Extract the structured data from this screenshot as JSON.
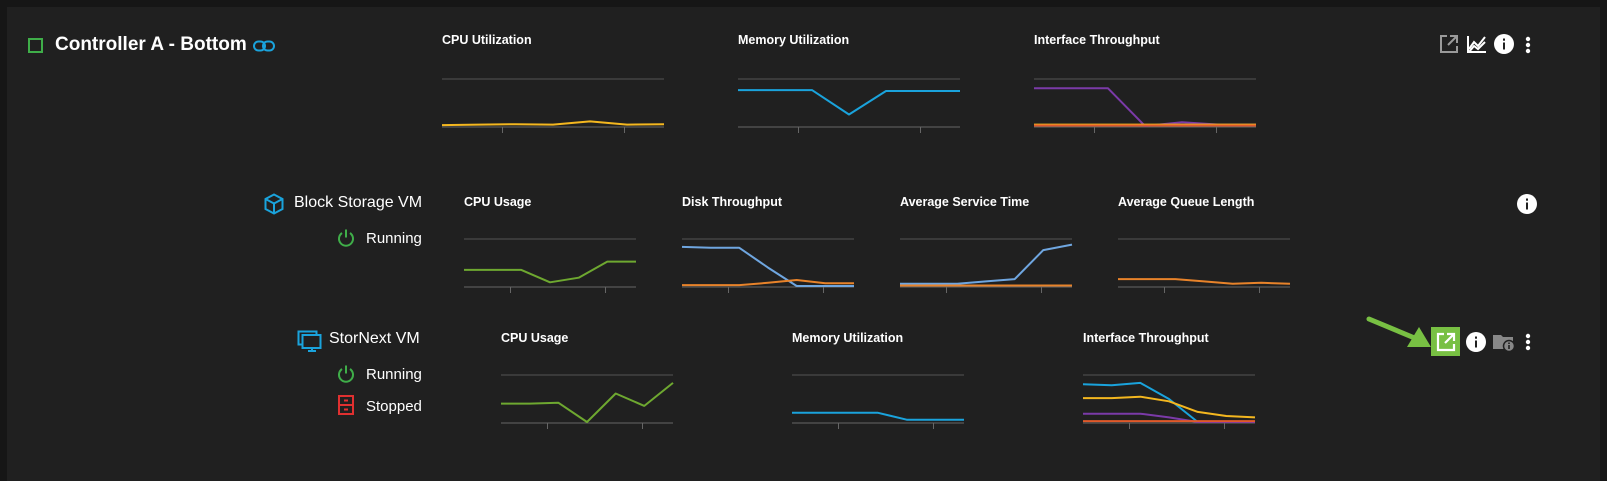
{
  "colors": {
    "background": "#202020",
    "orange": "#f4b71f",
    "blue": "#1aa3dc",
    "purple": "#7b3aa8",
    "red": "#e0592a",
    "green": "#6ea830",
    "light_blue": "#6fa6e0",
    "disk_orange": "#e8832a",
    "running": "#3fae49",
    "stopped": "#e03030",
    "highlight": "#78c043",
    "arrow": "#78c043"
  },
  "controller": {
    "title": "Controller A - Bottom",
    "status_icon": "square-outline-icon",
    "link_icon": "link-icon",
    "actions": [
      "open-external-icon",
      "chart-icon",
      "info-icon",
      "more-vert-icon"
    ]
  },
  "block_storage": {
    "name": "Block Storage VM",
    "icon": "cube-icon",
    "status": "Running",
    "status_icon": "power-icon",
    "actions": [
      "info-icon"
    ]
  },
  "stornext": {
    "name": "StorNext VM",
    "icon": "monitor-icon",
    "statuses": [
      {
        "label": "Running",
        "icon": "power-icon"
      },
      {
        "label": "Stopped",
        "icon": "stopped-cabinet-icon"
      }
    ],
    "actions": [
      "open-external-icon",
      "info-icon",
      "folder-info-icon",
      "more-vert-icon"
    ]
  },
  "chart_data": [
    {
      "id": "ctrl-cpu",
      "type": "line",
      "title": "CPU Utilization",
      "ylim": [
        0,
        100
      ],
      "series": [
        {
          "color": "#f4b71f",
          "values": [
            2,
            3,
            4,
            3,
            10,
            3,
            4
          ]
        }
      ]
    },
    {
      "id": "ctrl-mem",
      "type": "line",
      "title": "Memory Utilization",
      "ylim": [
        0,
        100
      ],
      "series": [
        {
          "color": "#1aa3dc",
          "values": [
            78,
            78,
            78,
            25,
            76,
            76,
            76
          ]
        }
      ]
    },
    {
      "id": "ctrl-net",
      "type": "line",
      "title": "Interface Throughput",
      "ylim": [
        0,
        100
      ],
      "series": [
        {
          "color": "#7b3aa8",
          "values": [
            82,
            82,
            82,
            0,
            8,
            3,
            3
          ]
        },
        {
          "color": "#f4b71f",
          "values": [
            3,
            3,
            3,
            3,
            3,
            3,
            3
          ]
        },
        {
          "color": "#e0592a",
          "values": [
            1,
            1,
            1,
            1,
            1,
            1,
            1
          ]
        }
      ]
    },
    {
      "id": "bs-cpu",
      "type": "line",
      "title": "CPU Usage",
      "ylim": [
        0,
        100
      ],
      "series": [
        {
          "color": "#6ea830",
          "values": [
            35,
            35,
            35,
            8,
            18,
            53,
            53
          ]
        }
      ]
    },
    {
      "id": "bs-disk",
      "type": "line",
      "title": "Disk Throughput",
      "ylim": [
        0,
        100
      ],
      "series": [
        {
          "color": "#6fa6e0",
          "values": [
            85,
            83,
            83,
            40,
            0,
            0,
            0
          ]
        },
        {
          "color": "#e8832a",
          "values": [
            2,
            2,
            2,
            7,
            13,
            6,
            6
          ]
        }
      ]
    },
    {
      "id": "bs-svc",
      "type": "line",
      "title": "Average Service Time",
      "ylim": [
        0,
        100
      ],
      "series": [
        {
          "color": "#6fa6e0",
          "values": [
            5,
            5,
            5,
            10,
            15,
            78,
            90
          ]
        },
        {
          "color": "#e8832a",
          "values": [
            1,
            1,
            1,
            1,
            1,
            1,
            1
          ]
        }
      ]
    },
    {
      "id": "bs-queue",
      "type": "line",
      "title": "Average Queue Length",
      "ylim": [
        0,
        100
      ],
      "series": [
        {
          "color": "#e8832a",
          "values": [
            15,
            15,
            15,
            10,
            5,
            7,
            5
          ]
        }
      ]
    },
    {
      "id": "sn-cpu",
      "type": "line",
      "title": "CPU Usage",
      "ylim": [
        0,
        100
      ],
      "series": [
        {
          "color": "#6ea830",
          "values": [
            40,
            40,
            42,
            0,
            62,
            35,
            85
          ]
        }
      ]
    },
    {
      "id": "sn-mem",
      "type": "line",
      "title": "Memory Utilization",
      "ylim": [
        0,
        100
      ],
      "series": [
        {
          "color": "#1aa3dc",
          "values": [
            20,
            20,
            20,
            20,
            5,
            5,
            5
          ]
        }
      ]
    },
    {
      "id": "sn-net",
      "type": "line",
      "title": "Interface Throughput",
      "ylim": [
        0,
        100
      ],
      "series": [
        {
          "color": "#1aa3dc",
          "values": [
            82,
            80,
            85,
            50,
            0,
            0,
            0
          ]
        },
        {
          "color": "#f4b71f",
          "values": [
            52,
            52,
            55,
            45,
            22,
            13,
            10
          ]
        },
        {
          "color": "#7b3aa8",
          "values": [
            18,
            18,
            18,
            10,
            0,
            0,
            0
          ]
        },
        {
          "color": "#e0592a",
          "values": [
            2,
            2,
            2,
            2,
            2,
            2,
            2
          ]
        }
      ]
    }
  ]
}
